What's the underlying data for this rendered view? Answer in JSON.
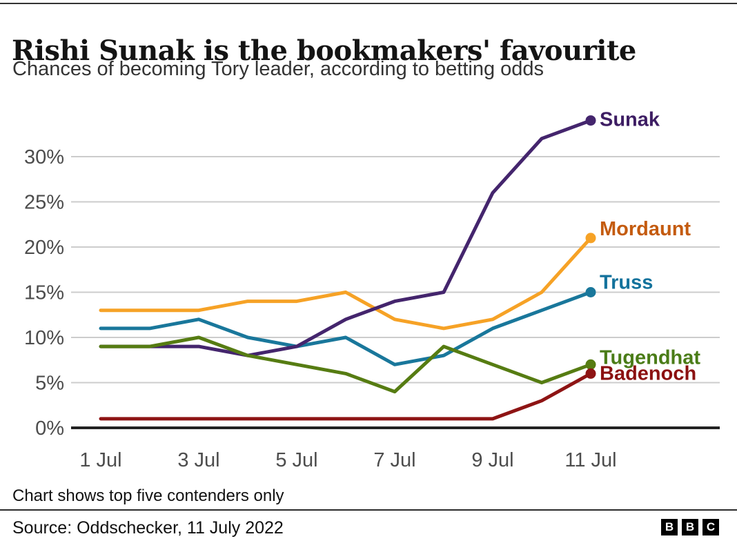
{
  "header": {
    "title": "Rishi Sunak is the bookmakers' favourite",
    "subtitle": "Chances of becoming Tory leader, according to betting odds"
  },
  "footer": {
    "note": "Chart shows top five contenders only",
    "source": "Source: Oddschecker, 11 July 2022",
    "logo": {
      "letters": [
        "B",
        "B",
        "C"
      ]
    }
  },
  "chart_data": {
    "type": "line",
    "title": "Rishi Sunak is the bookmakers' favourite",
    "subtitle": "Chances of becoming Tory leader, according to betting odds",
    "x": [
      "1 Jul",
      "2 Jul",
      "3 Jul",
      "4 Jul",
      "5 Jul",
      "6 Jul",
      "7 Jul",
      "8 Jul",
      "9 Jul",
      "10 Jul",
      "11 Jul"
    ],
    "x_tick_indices": [
      0,
      2,
      4,
      6,
      8,
      10
    ],
    "y_ticks": [
      0,
      5,
      10,
      15,
      20,
      25,
      30
    ],
    "y_tick_suffix": "%",
    "ylim": [
      0,
      35
    ],
    "grid": true,
    "legend_position": "end-of-line",
    "axis_color": "#222222",
    "grid_color": "#cccccc",
    "tick_label_color": "#4d4d4d",
    "series": [
      {
        "name": "Sunak",
        "line_color": "#44256d",
        "label_color": "#3d1d63",
        "values": [
          9,
          9,
          9,
          8,
          9,
          12,
          14,
          15,
          26,
          32,
          34
        ]
      },
      {
        "name": "Mordaunt",
        "line_color": "#f6a226",
        "label_color": "#c45b0f",
        "values": [
          13,
          13,
          13,
          14,
          14,
          15,
          12,
          11,
          12,
          15,
          21
        ]
      },
      {
        "name": "Truss",
        "line_color": "#19779b",
        "label_color": "#13729c",
        "values": [
          11,
          11,
          12,
          10,
          9,
          10,
          7,
          8,
          11,
          13,
          15
        ]
      },
      {
        "name": "Tugendhat",
        "line_color": "#567c12",
        "label_color": "#4a7c17",
        "values": [
          9,
          9,
          10,
          8,
          7,
          6,
          4,
          9,
          7,
          5,
          7
        ]
      },
      {
        "name": "Badenoch",
        "line_color": "#8e1414",
        "label_color": "#8b1111",
        "values": [
          1,
          1,
          1,
          1,
          1,
          1,
          1,
          1,
          1,
          3,
          6
        ]
      }
    ],
    "draw_order": [
      "Badenoch",
      "Mordaunt",
      "Truss",
      "Sunak",
      "Tugendhat"
    ]
  }
}
